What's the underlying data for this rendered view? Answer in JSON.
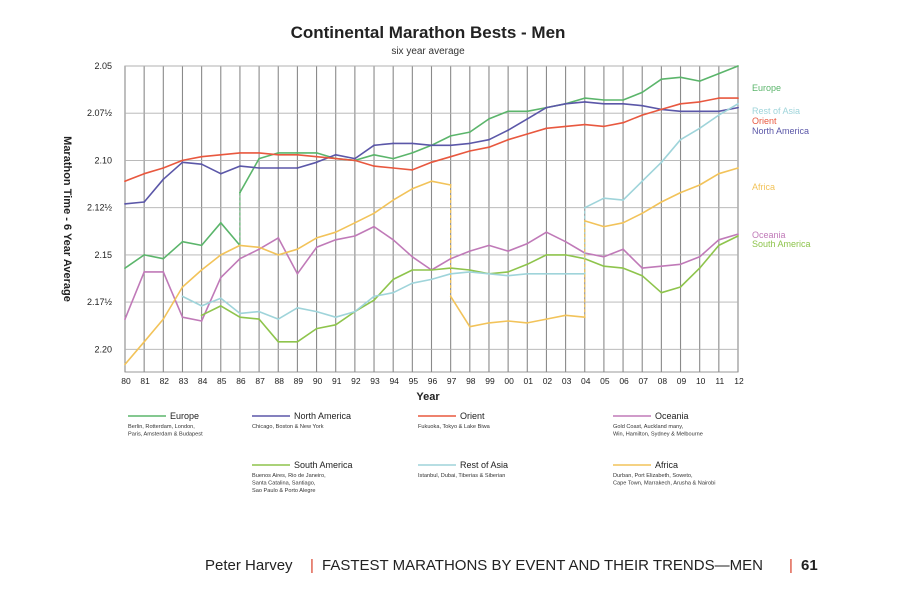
{
  "chart_data": {
    "type": "line",
    "title": "Continental Marathon Bests - Men",
    "subtitle": "six year average",
    "xlabel": "Year",
    "ylabel": "Marathon Time - 6 Year Average",
    "x_ticks": [
      "80",
      "81",
      "82",
      "83",
      "84",
      "85",
      "86",
      "87",
      "88",
      "89",
      "90",
      "91",
      "92",
      "93",
      "94",
      "95",
      "96",
      "97",
      "98",
      "99",
      "00",
      "01",
      "02",
      "03",
      "04",
      "05",
      "06",
      "07",
      "08",
      "09",
      "10",
      "11",
      "12"
    ],
    "y_tick_labels": [
      "2.05",
      "2.07½",
      "2.10",
      "2.12½",
      "2.15",
      "2.17½",
      "2.20"
    ],
    "y_tick_values": [
      2.05,
      2.075,
      2.1,
      2.125,
      2.15,
      2.175,
      2.2
    ],
    "ylim": [
      2.05,
      2.212
    ],
    "y_inverted": true,
    "grid": true,
    "series": [
      {
        "name": "Europe",
        "color": "#5bb56b",
        "cities": [
          "Berlin, Rotterdam, London,",
          "Paris, Amsterdam & Budapest"
        ],
        "side_label": "Europe",
        "segments": [
          [
            [
              1980,
              2.157
            ],
            [
              1981,
              2.15
            ],
            [
              1982,
              2.152
            ],
            [
              1983,
              2.143
            ],
            [
              1984,
              2.145
            ],
            [
              1985,
              2.133
            ],
            [
              1986,
              2.145
            ]
          ],
          [
            [
              1986,
              2.117
            ],
            [
              1987,
              2.099
            ],
            [
              1988,
              2.096
            ],
            [
              1989,
              2.096
            ],
            [
              1990,
              2.096
            ],
            [
              1991,
              2.099
            ],
            [
              1992,
              2.1
            ],
            [
              1993,
              2.097
            ],
            [
              1994,
              2.099
            ],
            [
              1995,
              2.096
            ],
            [
              1996,
              2.092
            ],
            [
              1997,
              2.087
            ],
            [
              1998,
              2.085
            ],
            [
              1999,
              2.078
            ],
            [
              2000,
              2.074
            ],
            [
              2001,
              2.074
            ],
            [
              2002,
              2.072
            ],
            [
              2003,
              2.07
            ],
            [
              2004,
              2.067
            ],
            [
              2005,
              2.068
            ],
            [
              2006,
              2.068
            ],
            [
              2007,
              2.064
            ],
            [
              2008,
              2.057
            ],
            [
              2009,
              2.056
            ],
            [
              2010,
              2.058
            ],
            [
              2011,
              2.054
            ],
            [
              2012,
              2.05
            ]
          ]
        ]
      },
      {
        "name": "North America",
        "color": "#5b57a8",
        "cities": [
          "Chicago, Boston & New York"
        ],
        "side_label": "North America",
        "segments": [
          [
            [
              1980,
              2.123
            ],
            [
              1981,
              2.122
            ],
            [
              1982,
              2.11
            ],
            [
              1983,
              2.101
            ],
            [
              1984,
              2.102
            ],
            [
              1985,
              2.107
            ],
            [
              1986,
              2.103
            ],
            [
              1987,
              2.104
            ],
            [
              1988,
              2.104
            ],
            [
              1989,
              2.104
            ],
            [
              1990,
              2.101
            ],
            [
              1991,
              2.097
            ],
            [
              1992,
              2.099
            ],
            [
              1993,
              2.092
            ],
            [
              1994,
              2.091
            ],
            [
              1995,
              2.091
            ],
            [
              1996,
              2.092
            ],
            [
              1997,
              2.092
            ],
            [
              1998,
              2.091
            ],
            [
              1999,
              2.089
            ],
            [
              2000,
              2.084
            ],
            [
              2001,
              2.078
            ],
            [
              2002,
              2.072
            ],
            [
              2003,
              2.07
            ],
            [
              2004,
              2.069
            ],
            [
              2005,
              2.07
            ],
            [
              2006,
              2.07
            ],
            [
              2007,
              2.071
            ],
            [
              2008,
              2.073
            ],
            [
              2009,
              2.074
            ],
            [
              2010,
              2.074
            ],
            [
              2011,
              2.074
            ],
            [
              2012,
              2.072
            ]
          ]
        ]
      },
      {
        "name": "Orient",
        "color": "#e8583f",
        "cities": [
          "Fukuoka, Tokyo & Lake Biwa"
        ],
        "side_label": "Orient",
        "segments": [
          [
            [
              1980,
              2.111
            ],
            [
              1981,
              2.107
            ],
            [
              1982,
              2.104
            ],
            [
              1983,
              2.1
            ],
            [
              1984,
              2.098
            ],
            [
              1985,
              2.097
            ],
            [
              1986,
              2.096
            ],
            [
              1987,
              2.096
            ],
            [
              1988,
              2.097
            ],
            [
              1989,
              2.097
            ],
            [
              1990,
              2.098
            ],
            [
              1991,
              2.099
            ],
            [
              1992,
              2.1
            ],
            [
              1993,
              2.103
            ],
            [
              1994,
              2.104
            ],
            [
              1995,
              2.105
            ],
            [
              1996,
              2.101
            ],
            [
              1997,
              2.098
            ],
            [
              1998,
              2.095
            ],
            [
              1999,
              2.093
            ],
            [
              2000,
              2.089
            ],
            [
              2001,
              2.086
            ],
            [
              2002,
              2.083
            ],
            [
              2003,
              2.082
            ],
            [
              2004,
              2.081
            ],
            [
              2005,
              2.082
            ],
            [
              2006,
              2.08
            ],
            [
              2007,
              2.076
            ],
            [
              2008,
              2.073
            ],
            [
              2009,
              2.07
            ],
            [
              2010,
              2.069
            ],
            [
              2011,
              2.067
            ],
            [
              2012,
              2.067
            ]
          ]
        ]
      },
      {
        "name": "Oceania",
        "color": "#c07ab8",
        "cities": [
          "Gold Coast, Auckland many,",
          "Win, Hamilton, Sydney & Melbourne"
        ],
        "side_label": "Oceania",
        "segments": [
          [
            [
              1980,
              2.184
            ],
            [
              1981,
              2.159
            ],
            [
              1982,
              2.159
            ],
            [
              1983,
              2.183
            ],
            [
              1984,
              2.185
            ],
            [
              1985,
              2.162
            ],
            [
              1986,
              2.152
            ],
            [
              1987,
              2.147
            ],
            [
              1988,
              2.141
            ],
            [
              1989,
              2.16
            ],
            [
              1990,
              2.146
            ],
            [
              1991,
              2.142
            ],
            [
              1992,
              2.14
            ],
            [
              1993,
              2.135
            ],
            [
              1994,
              2.142
            ],
            [
              1995,
              2.151
            ],
            [
              1996,
              2.158
            ],
            [
              1997,
              2.152
            ],
            [
              1998,
              2.148
            ],
            [
              1999,
              2.145
            ],
            [
              2000,
              2.148
            ],
            [
              2001,
              2.144
            ],
            [
              2002,
              2.138
            ],
            [
              2003,
              2.143
            ],
            [
              2004,
              2.149
            ],
            [
              2005,
              2.151
            ],
            [
              2006,
              2.147
            ],
            [
              2007,
              2.157
            ],
            [
              2008,
              2.156
            ],
            [
              2009,
              2.155
            ],
            [
              2010,
              2.151
            ],
            [
              2011,
              2.142
            ],
            [
              2012,
              2.139
            ]
          ]
        ]
      },
      {
        "name": "South America",
        "color": "#8ec44c",
        "cities": [
          "Buenos Aires, Rio de Janeiro,",
          "Santa Catalina, Santiago,",
          "Sao Paulo & Porto Alegre"
        ],
        "side_label": "South America",
        "segments": [
          [
            [
              1984,
              2.182
            ],
            [
              1985,
              2.177
            ],
            [
              1986,
              2.183
            ],
            [
              1987,
              2.184
            ],
            [
              1988,
              2.196
            ],
            [
              1989,
              2.196
            ],
            [
              1990,
              2.189
            ],
            [
              1991,
              2.187
            ],
            [
              1992,
              2.18
            ],
            [
              1993,
              2.174
            ],
            [
              1994,
              2.163
            ],
            [
              1995,
              2.158
            ],
            [
              1996,
              2.158
            ],
            [
              1997,
              2.157
            ],
            [
              1998,
              2.158
            ],
            [
              1999,
              2.16
            ],
            [
              2000,
              2.159
            ],
            [
              2001,
              2.155
            ],
            [
              2002,
              2.15
            ],
            [
              2003,
              2.15
            ],
            [
              2004,
              2.152
            ],
            [
              2005,
              2.156
            ],
            [
              2006,
              2.157
            ],
            [
              2007,
              2.161
            ],
            [
              2008,
              2.17
            ],
            [
              2009,
              2.167
            ],
            [
              2010,
              2.157
            ],
            [
              2011,
              2.145
            ],
            [
              2012,
              2.14
            ]
          ]
        ]
      },
      {
        "name": "Rest of Asia",
        "color": "#9fd4da",
        "cities": [
          "Istanbul, Dubai, Tiberias & Siberian"
        ],
        "side_label": "Rest of Asia",
        "segments": [
          [
            [
              1983,
              2.172
            ],
            [
              1984,
              2.177
            ],
            [
              1985,
              2.173
            ],
            [
              1986,
              2.181
            ],
            [
              1987,
              2.18
            ],
            [
              1988,
              2.184
            ],
            [
              1989,
              2.178
            ],
            [
              1990,
              2.18
            ],
            [
              1991,
              2.183
            ],
            [
              1992,
              2.18
            ],
            [
              1993,
              2.172
            ],
            [
              1994,
              2.17
            ],
            [
              1995,
              2.165
            ],
            [
              1996,
              2.163
            ],
            [
              1997,
              2.16
            ],
            [
              1998,
              2.159
            ],
            [
              1999,
              2.16
            ],
            [
              2000,
              2.161
            ],
            [
              2001,
              2.16
            ],
            [
              2002,
              2.16
            ],
            [
              2003,
              2.16
            ],
            [
              2004,
              2.16
            ]
          ],
          [
            [
              2004,
              2.125
            ],
            [
              2005,
              2.12
            ],
            [
              2006,
              2.121
            ],
            [
              2007,
              2.111
            ],
            [
              2008,
              2.101
            ],
            [
              2009,
              2.089
            ],
            [
              2010,
              2.083
            ],
            [
              2011,
              2.076
            ],
            [
              2012,
              2.07
            ]
          ]
        ]
      },
      {
        "name": "Africa",
        "color": "#f2c35a",
        "cities": [
          "Durban, Port Elizabeth, Soweto,",
          "Cape Town, Marrakech, Arusha & Nairobi"
        ],
        "side_label": "Africa",
        "segments": [
          [
            [
              1980,
              2.208
            ],
            [
              1981,
              2.196
            ],
            [
              1982,
              2.184
            ],
            [
              1983,
              2.167
            ],
            [
              1984,
              2.158
            ],
            [
              1985,
              2.15
            ],
            [
              1986,
              2.145
            ],
            [
              1987,
              2.146
            ],
            [
              1988,
              2.15
            ],
            [
              1989,
              2.147
            ],
            [
              1990,
              2.141
            ],
            [
              1991,
              2.138
            ],
            [
              1992,
              2.133
            ],
            [
              1993,
              2.128
            ],
            [
              1994,
              2.121
            ],
            [
              1995,
              2.115
            ],
            [
              1996,
              2.111
            ],
            [
              1997,
              2.113
            ]
          ],
          [
            [
              1997,
              2.172
            ],
            [
              1998,
              2.188
            ],
            [
              1999,
              2.186
            ],
            [
              2000,
              2.185
            ],
            [
              2001,
              2.186
            ],
            [
              2002,
              2.184
            ],
            [
              2003,
              2.182
            ],
            [
              2004,
              2.183
            ]
          ],
          [
            [
              2004,
              2.132
            ],
            [
              2005,
              2.135
            ],
            [
              2006,
              2.133
            ],
            [
              2007,
              2.128
            ],
            [
              2008,
              2.122
            ],
            [
              2009,
              2.117
            ],
            [
              2010,
              2.113
            ],
            [
              2011,
              2.107
            ],
            [
              2012,
              2.104
            ]
          ]
        ]
      }
    ]
  },
  "footer": {
    "author": "Peter Harvey",
    "separator": "|",
    "book_title": "FASTEST MARATHONS BY EVENT AND THEIR TRENDS—MEN",
    "page_number": "61"
  }
}
